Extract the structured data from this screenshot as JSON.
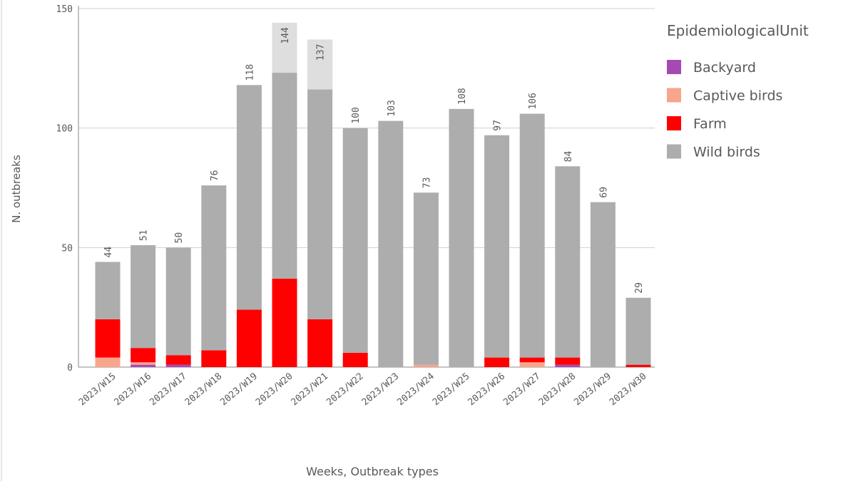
{
  "chart_data": {
    "type": "stacked-bar",
    "x_label": "Weeks, Outbreak types",
    "y_label": "N. outbreaks",
    "legend_title": "EpidemiologicalUnit",
    "categories": [
      "2023/W15",
      "2023/W16",
      "2023/W17",
      "2023/W18",
      "2023/W19",
      "2023/W20",
      "2023/W21",
      "2023/W22",
      "2023/W23",
      "2023/W24",
      "2023/W25",
      "2023/W26",
      "2023/W27",
      "2023/W28",
      "2023/W29",
      "2023/W30"
    ],
    "series": [
      {
        "name": "Backyard",
        "color": "#a54ab5",
        "values": [
          0,
          1,
          1,
          0,
          0,
          0,
          0,
          0,
          0,
          0,
          0,
          0,
          0,
          1,
          0,
          0
        ]
      },
      {
        "name": "Captive birds",
        "color": "#f8a58c",
        "values": [
          4,
          1,
          0,
          0,
          0,
          0,
          0,
          0,
          0,
          1,
          0,
          0,
          2,
          0,
          0,
          0
        ]
      },
      {
        "name": "Farm",
        "color": "#ff0000",
        "values": [
          16,
          6,
          4,
          7,
          24,
          37,
          20,
          6,
          0,
          0,
          0,
          4,
          2,
          3,
          0,
          1
        ]
      },
      {
        "name": "Wild birds",
        "color": "#adadad",
        "values": [
          24,
          43,
          45,
          69,
          94,
          107,
          117,
          94,
          103,
          72,
          108,
          93,
          102,
          80,
          69,
          28
        ]
      }
    ],
    "totals": [
      44,
      51,
      50,
      76,
      118,
      144,
      137,
      100,
      103,
      73,
      108,
      97,
      106,
      84,
      69,
      29
    ],
    "ylim": [
      0,
      150
    ],
    "yticks": [
      0,
      50,
      100,
      150
    ],
    "grid": true
  }
}
